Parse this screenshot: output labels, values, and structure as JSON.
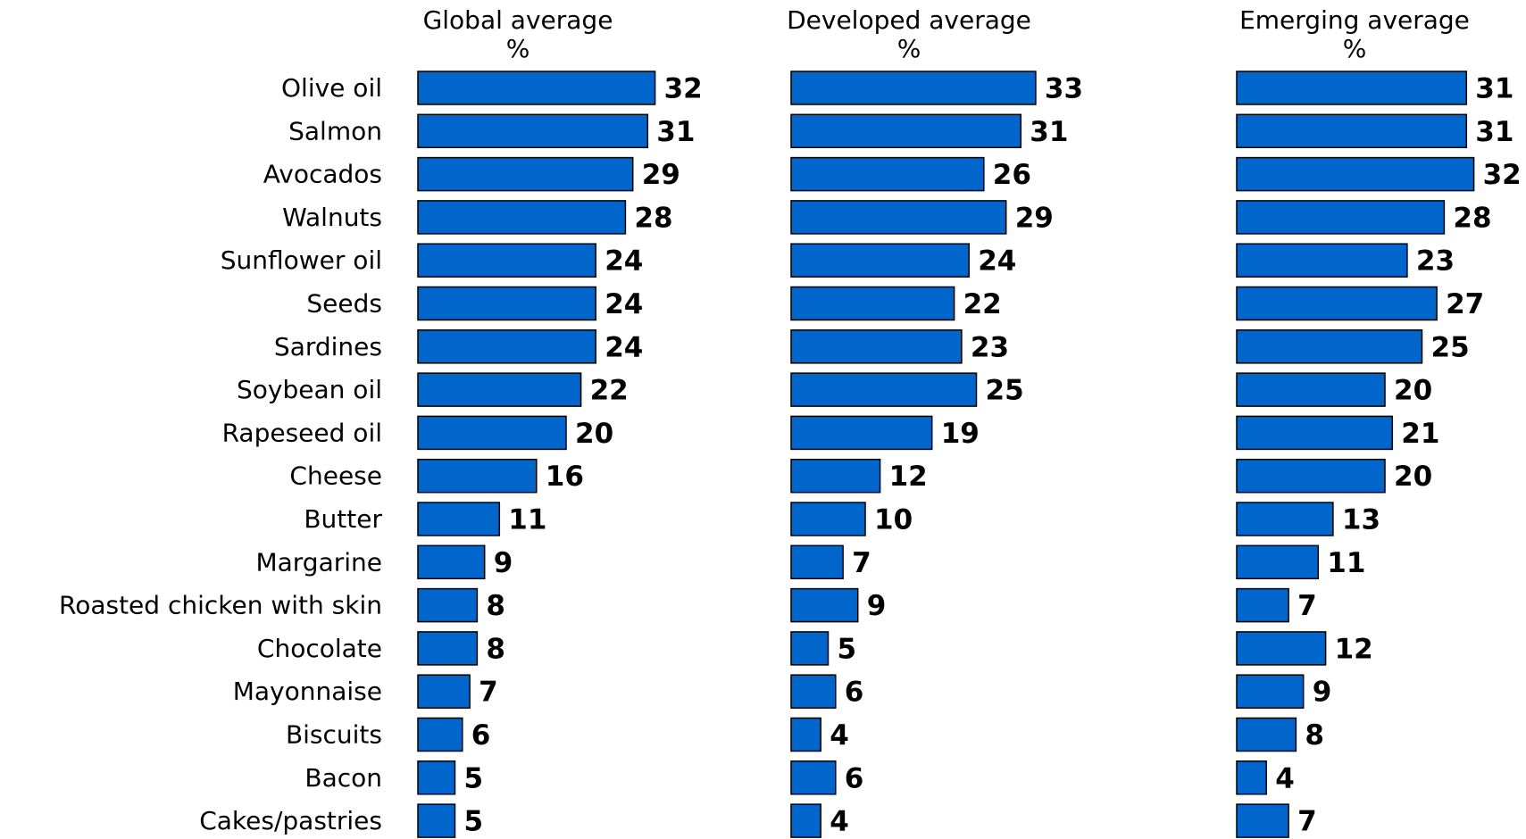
{
  "chart_data": {
    "type": "bar",
    "orientation": "horizontal",
    "categories": [
      "Olive oil",
      "Salmon",
      "Avocados",
      "Walnuts",
      "Sunflower oil",
      "Seeds",
      "Sardines",
      "Soybean oil",
      "Rapeseed oil",
      "Cheese",
      "Butter",
      "Margarine",
      "Roasted chicken with skin",
      "Chocolate",
      "Mayonnaise",
      "Biscuits",
      "Bacon",
      "Cakes/pastries"
    ],
    "series": [
      {
        "name": "Global average",
        "unit": "%",
        "values": [
          32,
          31,
          29,
          28,
          24,
          24,
          24,
          22,
          20,
          16,
          11,
          9,
          8,
          8,
          7,
          6,
          5,
          5
        ]
      },
      {
        "name": "Developed average",
        "unit": "%",
        "values": [
          33,
          31,
          26,
          29,
          24,
          22,
          23,
          25,
          19,
          12,
          10,
          7,
          9,
          5,
          6,
          4,
          6,
          4
        ]
      },
      {
        "name": "Emerging average",
        "unit": "%",
        "values": [
          31,
          31,
          32,
          28,
          23,
          27,
          25,
          20,
          21,
          20,
          13,
          11,
          7,
          12,
          9,
          8,
          4,
          7
        ]
      }
    ],
    "data_labels": true,
    "grid": false,
    "bar_color": "#0066CC"
  }
}
